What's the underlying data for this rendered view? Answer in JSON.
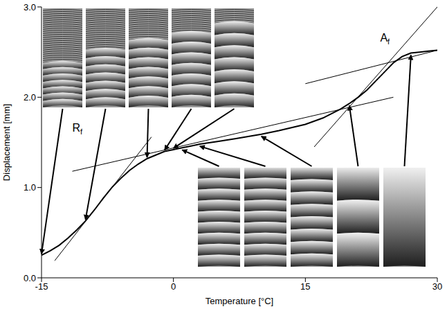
{
  "chart_data": {
    "type": "line",
    "xlabel": "Temperature [°C]",
    "ylabel": "Displacement [mm]",
    "xlim": [
      -15,
      30
    ],
    "ylim": [
      0,
      3
    ],
    "xticks": [
      -15,
      0,
      15,
      30
    ],
    "yticks": [
      {
        "value": 0,
        "label": "0.0"
      },
      {
        "value": 1,
        "label": "1.0"
      },
      {
        "value": 2,
        "label": "2.0"
      },
      {
        "value": 3,
        "label": "3.0"
      }
    ],
    "grid": false,
    "series": [
      {
        "x": [
          -15,
          -14,
          -13,
          -12,
          -11,
          -10,
          -9,
          -8,
          -7,
          -6,
          -5,
          -4,
          -3,
          -2,
          -1,
          0,
          1,
          2,
          3,
          5,
          7,
          10,
          12,
          15,
          17,
          18,
          19,
          20,
          21,
          22,
          23,
          24,
          25,
          26,
          27,
          28,
          29,
          30
        ],
        "values": [
          0.25,
          0.3,
          0.36,
          0.44,
          0.53,
          0.63,
          0.75,
          0.88,
          1.0,
          1.1,
          1.19,
          1.26,
          1.32,
          1.36,
          1.4,
          1.42,
          1.44,
          1.46,
          1.48,
          1.51,
          1.54,
          1.59,
          1.63,
          1.7,
          1.77,
          1.82,
          1.87,
          1.93,
          2.0,
          2.08,
          2.18,
          2.28,
          2.38,
          2.45,
          2.49,
          2.5,
          2.51,
          2.52
        ],
        "color": "#000000",
        "line_style": "solid"
      },
      {
        "x": [
          -13.5,
          -2.5
        ],
        "values": [
          0.19,
          1.56
        ],
        "color": "#000000",
        "line_style": "solid"
      },
      {
        "x": [
          -11.5,
          25
        ],
        "values": [
          1.18,
          2.0
        ],
        "color": "#000000",
        "line_style": "solid"
      },
      {
        "x": [
          16,
          30
        ],
        "values": [
          1.45,
          3.0
        ],
        "color": "#000000",
        "line_style": "solid"
      },
      {
        "x": [
          15,
          30
        ],
        "values": [
          2.15,
          2.52
        ],
        "color": "#000000",
        "line_style": "solid"
      }
    ],
    "annotations": [
      {
        "text": "Rf",
        "x": -11.5,
        "y": 1.62
      },
      {
        "text": "Af",
        "x": 23.5,
        "y": 2.62
      }
    ]
  }
}
